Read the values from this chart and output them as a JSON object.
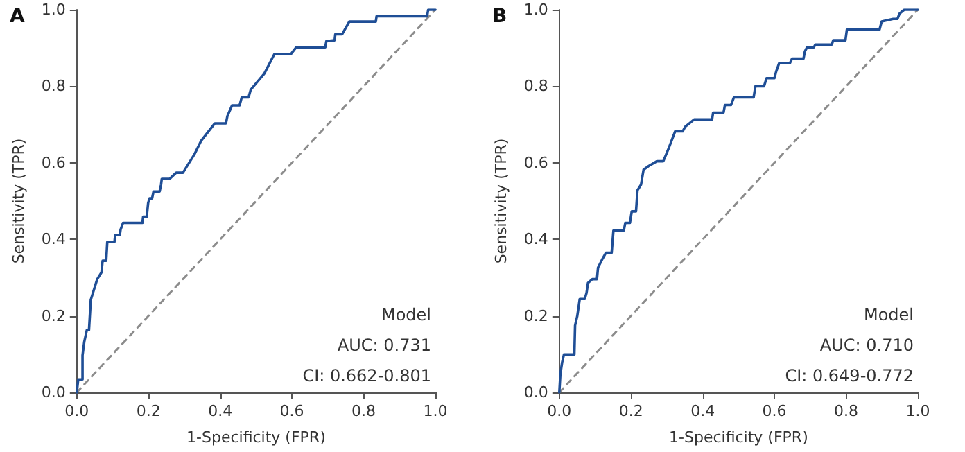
{
  "chart_data": [
    {
      "type": "line",
      "title": "A",
      "xlabel": "1-Specificity (FPR)",
      "ylabel": "Sensitivity (TPR)",
      "xlim": [
        0,
        1
      ],
      "ylim": [
        0,
        1
      ],
      "xticks": [
        {
          "value": 0,
          "label": "0.0"
        },
        {
          "value": 0.2,
          "label": "0.2"
        },
        {
          "value": 0.4,
          "label": "0.4"
        },
        {
          "value": 0.6,
          "label": "0.6"
        },
        {
          "value": 0.8,
          "label": "0.8"
        },
        {
          "value": 1,
          "label": "1.0"
        }
      ],
      "yticks": [
        {
          "value": 0,
          "label": "0.0"
        },
        {
          "value": 0.2,
          "label": "0.2"
        },
        {
          "value": 0.4,
          "label": "0.4"
        },
        {
          "value": 0.6,
          "label": "0.6"
        },
        {
          "value": 0.8,
          "label": "0.8"
        },
        {
          "value": 1,
          "label": "1.0"
        }
      ],
      "grid": false,
      "marker": "none",
      "annotations": [
        "Model",
        "AUC: 0.731",
        "CI: 0.662-0.801"
      ],
      "series": [
        {
          "color": "#1f4e96",
          "line_style": "solid",
          "x": [
            0,
            0.004,
            0.016,
            0.016,
            0.021,
            0.028,
            0.034,
            0.039,
            0.057,
            0.069,
            0.072,
            0.082,
            0.085,
            0.105,
            0.107,
            0.12,
            0.122,
            0.129,
            0.183,
            0.185,
            0.195,
            0.199,
            0.203,
            0.21,
            0.214,
            0.231,
            0.235,
            0.237,
            0.259,
            0.277,
            0.296,
            0.328,
            0.337,
            0.347,
            0.385,
            0.416,
            0.42,
            0.433,
            0.454,
            0.46,
            0.479,
            0.485,
            0.523,
            0.551,
            0.597,
            0.612,
            0.693,
            0.696,
            0.719,
            0.721,
            0.74,
            0.76,
            0.834,
            0.836,
            0.977,
            0.98,
            1
          ],
          "values": [
            0,
            0.034,
            0.034,
            0.097,
            0.133,
            0.163,
            0.163,
            0.242,
            0.296,
            0.314,
            0.344,
            0.344,
            0.393,
            0.393,
            0.411,
            0.411,
            0.425,
            0.443,
            0.443,
            0.459,
            0.459,
            0.495,
            0.507,
            0.507,
            0.525,
            0.525,
            0.543,
            0.558,
            0.558,
            0.574,
            0.574,
            0.622,
            0.639,
            0.658,
            0.703,
            0.703,
            0.722,
            0.75,
            0.75,
            0.771,
            0.771,
            0.791,
            0.833,
            0.884,
            0.884,
            0.902,
            0.902,
            0.918,
            0.92,
            0.936,
            0.936,
            0.969,
            0.969,
            0.983,
            0.983,
            1,
            1
          ]
        },
        {
          "color": "#8c8c8c",
          "line_style": "dashed",
          "x": [
            0,
            1
          ],
          "values": [
            0,
            1
          ]
        }
      ]
    },
    {
      "type": "line",
      "title": "B",
      "xlabel": "1-Specificity (FPR)",
      "ylabel": "Sensitivity (TPR)",
      "xlim": [
        0,
        1
      ],
      "ylim": [
        0,
        1
      ],
      "xticks": [
        {
          "value": 0,
          "label": "0.0"
        },
        {
          "value": 0.2,
          "label": "0.2"
        },
        {
          "value": 0.4,
          "label": "0.4"
        },
        {
          "value": 0.6,
          "label": "0.6"
        },
        {
          "value": 0.8,
          "label": "0.8"
        },
        {
          "value": 1,
          "label": "1.0"
        }
      ],
      "yticks": [
        {
          "value": 0,
          "label": "0.0"
        },
        {
          "value": 0.2,
          "label": "0.2"
        },
        {
          "value": 0.4,
          "label": "0.4"
        },
        {
          "value": 0.6,
          "label": "0.6"
        },
        {
          "value": 0.8,
          "label": "0.8"
        },
        {
          "value": 1,
          "label": "1.0"
        }
      ],
      "grid": false,
      "marker": "none",
      "annotations": [
        "Model",
        "AUC: 0.710",
        "CI: 0.649-0.772"
      ],
      "series": [
        {
          "color": "#1f4e96",
          "line_style": "solid",
          "x": [
            0,
            0.003,
            0.008,
            0.013,
            0.042,
            0.044,
            0.05,
            0.057,
            0.071,
            0.076,
            0.08,
            0.092,
            0.105,
            0.108,
            0.121,
            0.13,
            0.146,
            0.151,
            0.18,
            0.184,
            0.197,
            0.202,
            0.214,
            0.218,
            0.228,
            0.235,
            0.25,
            0.272,
            0.29,
            0.306,
            0.323,
            0.344,
            0.351,
            0.363,
            0.376,
            0.426,
            0.429,
            0.458,
            0.462,
            0.479,
            0.487,
            0.542,
            0.547,
            0.571,
            0.578,
            0.6,
            0.605,
            0.613,
            0.643,
            0.649,
            0.681,
            0.685,
            0.691,
            0.71,
            0.714,
            0.76,
            0.764,
            0.798,
            0.802,
            0.893,
            0.899,
            0.931,
            0.943,
            0.949,
            0.962,
            1
          ],
          "values": [
            0,
            0.048,
            0.079,
            0.099,
            0.099,
            0.175,
            0.199,
            0.244,
            0.244,
            0.26,
            0.286,
            0.296,
            0.296,
            0.326,
            0.35,
            0.365,
            0.365,
            0.423,
            0.423,
            0.443,
            0.443,
            0.473,
            0.473,
            0.528,
            0.543,
            0.582,
            0.592,
            0.604,
            0.604,
            0.64,
            0.682,
            0.682,
            0.694,
            0.703,
            0.713,
            0.713,
            0.731,
            0.731,
            0.751,
            0.751,
            0.771,
            0.771,
            0.8,
            0.8,
            0.821,
            0.821,
            0.839,
            0.86,
            0.86,
            0.872,
            0.872,
            0.891,
            0.902,
            0.902,
            0.909,
            0.909,
            0.92,
            0.92,
            0.948,
            0.948,
            0.969,
            0.976,
            0.976,
            0.99,
            1,
            1
          ]
        },
        {
          "color": "#8c8c8c",
          "line_style": "dashed",
          "x": [
            0,
            1
          ],
          "values": [
            0,
            1
          ]
        }
      ]
    }
  ]
}
